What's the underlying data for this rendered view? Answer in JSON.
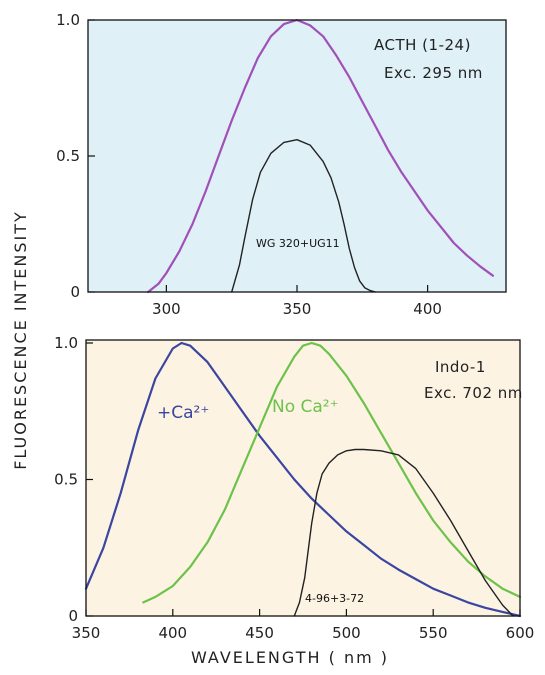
{
  "chart_data": [
    {
      "type": "line",
      "xlim": [
        270,
        430
      ],
      "ylim": [
        0,
        1.0
      ],
      "x_ticks": [
        "300",
        "350",
        "400"
      ],
      "y_ticks": [
        "0",
        "0.5",
        "1.0"
      ],
      "annotation": [
        "ACTH (1-24)",
        "Exc. 295 nm"
      ],
      "series": [
        {
          "name": "WG 320+UG11",
          "color": "#222222",
          "x": [
            325,
            328,
            330,
            333,
            336,
            340,
            345,
            350,
            355,
            360,
            363,
            366,
            368,
            370,
            372,
            374,
            376,
            378,
            380
          ],
          "y": [
            0.0,
            0.1,
            0.2,
            0.34,
            0.44,
            0.51,
            0.55,
            0.56,
            0.54,
            0.48,
            0.42,
            0.33,
            0.25,
            0.16,
            0.09,
            0.04,
            0.015,
            0.005,
            0.0
          ]
        },
        {
          "color": "#a050b8",
          "x": [
            293,
            297,
            300,
            305,
            310,
            315,
            320,
            325,
            330,
            335,
            340,
            345,
            350,
            355,
            360,
            365,
            370,
            375,
            380,
            385,
            390,
            395,
            400,
            405,
            410,
            415,
            420,
            425
          ],
          "y": [
            0.0,
            0.03,
            0.07,
            0.15,
            0.25,
            0.37,
            0.5,
            0.63,
            0.75,
            0.86,
            0.94,
            0.985,
            1.0,
            0.98,
            0.94,
            0.87,
            0.79,
            0.7,
            0.61,
            0.52,
            0.44,
            0.37,
            0.3,
            0.24,
            0.18,
            0.135,
            0.095,
            0.06
          ]
        }
      ]
    },
    {
      "type": "line",
      "xlim": [
        350,
        600
      ],
      "ylim": [
        0,
        1.0
      ],
      "x_ticks": [
        "350",
        "400",
        "450",
        "500",
        "550",
        "600"
      ],
      "y_ticks": [
        "0",
        "0.5",
        "1.0"
      ],
      "xlabel": "WAVELENGTH  ( nm )",
      "annotation": [
        "Indo-1",
        "Exc. 702 nm"
      ],
      "series": [
        {
          "name": "+Ca²⁺",
          "color": "#3a46a0",
          "x": [
            350,
            360,
            370,
            380,
            390,
            400,
            405,
            410,
            420,
            430,
            440,
            450,
            460,
            470,
            480,
            490,
            500,
            510,
            520,
            530,
            540,
            550,
            560,
            570,
            580,
            590,
            600
          ],
          "y": [
            0.1,
            0.25,
            0.45,
            0.68,
            0.87,
            0.98,
            1.0,
            0.99,
            0.93,
            0.84,
            0.75,
            0.66,
            0.58,
            0.5,
            0.43,
            0.37,
            0.31,
            0.26,
            0.21,
            0.17,
            0.135,
            0.1,
            0.075,
            0.05,
            0.03,
            0.015,
            0.0
          ]
        },
        {
          "name": "No Ca²⁺",
          "color": "#6cc24a",
          "x": [
            383,
            390,
            400,
            410,
            420,
            430,
            440,
            450,
            460,
            470,
            475,
            480,
            485,
            490,
            500,
            510,
            520,
            530,
            540,
            550,
            560,
            570,
            580,
            590,
            600
          ],
          "y": [
            0.05,
            0.07,
            0.11,
            0.18,
            0.27,
            0.39,
            0.54,
            0.69,
            0.84,
            0.95,
            0.99,
            1.0,
            0.99,
            0.96,
            0.88,
            0.78,
            0.67,
            0.56,
            0.45,
            0.35,
            0.27,
            0.2,
            0.145,
            0.1,
            0.07
          ]
        },
        {
          "name": "4-96+3-72",
          "color": "#222222",
          "x": [
            470,
            473,
            476,
            478,
            480,
            483,
            486,
            490,
            495,
            500,
            505,
            510,
            520,
            530,
            540,
            550,
            560,
            570,
            580,
            590,
            596
          ],
          "y": [
            0.0,
            0.05,
            0.14,
            0.24,
            0.34,
            0.45,
            0.52,
            0.56,
            0.59,
            0.605,
            0.61,
            0.61,
            0.605,
            0.59,
            0.54,
            0.45,
            0.35,
            0.24,
            0.13,
            0.04,
            0.0
          ]
        }
      ]
    }
  ],
  "ylabel": "FLUORESCENCE  INTENSITY"
}
